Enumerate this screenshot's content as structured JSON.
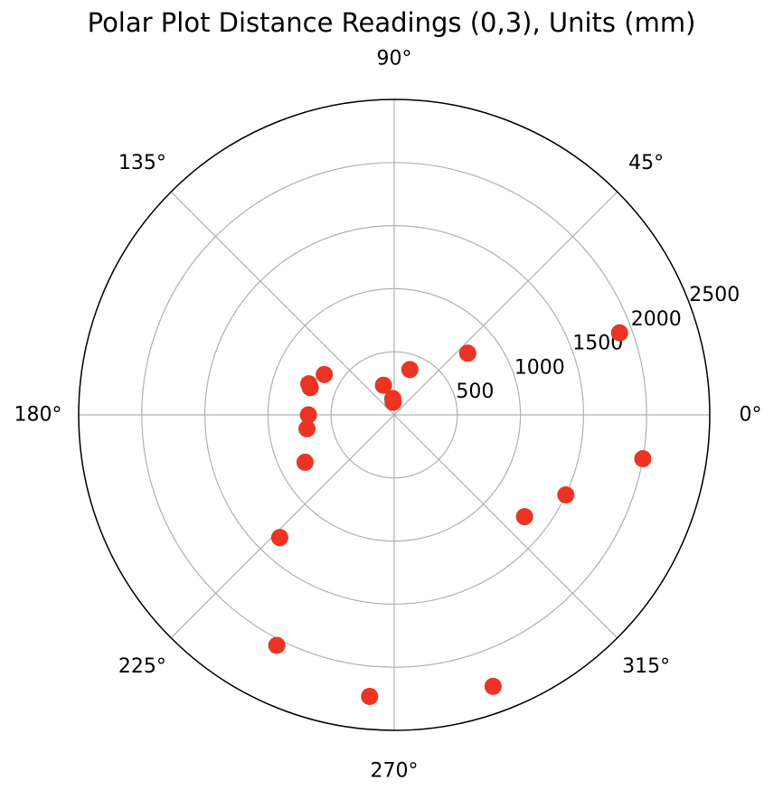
{
  "chart_data": {
    "type": "scatter",
    "projection": "polar",
    "title": "Polar Plot Distance Readings (0,3), Units (mm)",
    "angle_unit": "degrees",
    "angle_ticks": [
      0,
      45,
      90,
      135,
      180,
      225,
      270,
      315
    ],
    "angle_tick_labels": [
      "0°",
      "45°",
      "90°",
      "135°",
      "180°",
      "225°",
      "270°",
      "315°"
    ],
    "radial_ticks": [
      500,
      1000,
      1500,
      2000,
      2500
    ],
    "radial_tick_labels": [
      "500",
      "1000",
      "1500",
      "2000",
      "2500"
    ],
    "rlim": [
      0,
      2500
    ],
    "grid": true,
    "marker_color": "#ee3322",
    "points": [
      {
        "theta": 20,
        "r": 1900
      },
      {
        "theta": 40,
        "r": 760
      },
      {
        "theta": 71,
        "r": 380
      },
      {
        "theta": 95,
        "r": 130
      },
      {
        "theta": 110,
        "r": 250
      },
      {
        "theta": 150,
        "r": 640
      },
      {
        "theta": 160,
        "r": 720
      },
      {
        "theta": 162,
        "r": 700
      },
      {
        "theta": 180,
        "r": 680
      },
      {
        "theta": 189,
        "r": 700
      },
      {
        "theta": 208,
        "r": 800
      },
      {
        "theta": 227,
        "r": 1330
      },
      {
        "theta": 243,
        "r": 2050
      },
      {
        "theta": 265,
        "r": 2240
      },
      {
        "theta": 290,
        "r": 2290
      },
      {
        "theta": 322,
        "r": 1310
      },
      {
        "theta": 335,
        "r": 1500
      },
      {
        "theta": 350,
        "r": 2000
      },
      {
        "theta": 95,
        "r": 100
      }
    ]
  }
}
